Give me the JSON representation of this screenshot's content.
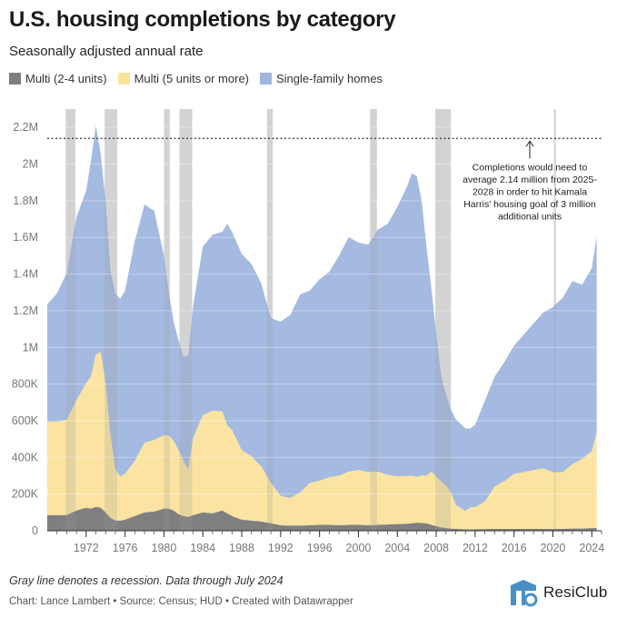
{
  "page": {
    "title": "U.S. housing completions by category",
    "subtitle": "Seasonally adjusted annual rate",
    "note": "Gray line denotes a recession. Data through July 2024",
    "credit": "Chart: Lance Lambert • Source: Census; HUD • Created with Datawrapper",
    "brand": "ResiClub",
    "annotation": "Completions would need to average 2.14 million from 2025-2028 in order to hit Kamala Harris' housing goal of 3 million additional units"
  },
  "colors": {
    "multi_2_4": "#7f7f7f",
    "multi_5_plus": "#fbe39c",
    "single_family": "#a0b6df",
    "recession": "#e3e3e3",
    "brand": "#4a90c8"
  },
  "chart_data": {
    "type": "area",
    "stacked": true,
    "x_unit": "year",
    "xlim": [
      1968,
      2025
    ],
    "ylim": [
      0,
      2300000
    ],
    "yticks": [
      {
        "value": 0,
        "label": "0"
      },
      {
        "value": 200000,
        "label": "200K"
      },
      {
        "value": 400000,
        "label": "400K"
      },
      {
        "value": 600000,
        "label": "600K"
      },
      {
        "value": 800000,
        "label": "800K"
      },
      {
        "value": 1000000,
        "label": "1M"
      },
      {
        "value": 1200000,
        "label": "1.2M"
      },
      {
        "value": 1400000,
        "label": "1.4M"
      },
      {
        "value": 1600000,
        "label": "1.6M"
      },
      {
        "value": 1800000,
        "label": "1.8M"
      },
      {
        "value": 2000000,
        "label": "2M"
      },
      {
        "value": 2200000,
        "label": "2.2M"
      }
    ],
    "xticks": [
      1972,
      1976,
      1980,
      1984,
      1988,
      1992,
      1996,
      2000,
      2004,
      2008,
      2012,
      2016,
      2020,
      2024
    ],
    "reference_line": {
      "value": 2140000
    },
    "recessions": [
      [
        1969.9,
        1970.9
      ],
      [
        1973.9,
        1975.2
      ],
      [
        1980.0,
        1980.6
      ],
      [
        1981.6,
        1982.9
      ],
      [
        1990.6,
        1991.2
      ],
      [
        2001.2,
        2001.9
      ],
      [
        2007.9,
        2009.5
      ],
      [
        2020.1,
        2020.3
      ]
    ],
    "legend": [
      "Multi (2-4 units)",
      "Multi (5 units or more)",
      "Single-family homes"
    ],
    "x": [
      1968.0,
      1969.0,
      1970.0,
      1971.0,
      1972.0,
      1972.5,
      1973.0,
      1973.5,
      1974.0,
      1974.5,
      1975.0,
      1975.5,
      1976.0,
      1977.0,
      1978.0,
      1979.0,
      1980.0,
      1980.5,
      1981.0,
      1981.5,
      1982.0,
      1982.5,
      1983.0,
      1984.0,
      1985.0,
      1986.0,
      1986.5,
      1987.0,
      1988.0,
      1989.0,
      1990.0,
      1991.0,
      1992.0,
      1993.0,
      1994.0,
      1995.0,
      1996.0,
      1997.0,
      1998.0,
      1999.0,
      2000.0,
      2001.0,
      2002.0,
      2003.0,
      2004.0,
      2005.0,
      2005.5,
      2006.0,
      2006.5,
      2007.0,
      2007.5,
      2008.0,
      2008.5,
      2009.0,
      2009.5,
      2010.0,
      2011.0,
      2011.5,
      2012.0,
      2013.0,
      2014.0,
      2015.0,
      2016.0,
      2017.0,
      2018.0,
      2019.0,
      2020.0,
      2021.0,
      2022.0,
      2023.0,
      2024.0,
      2024.5
    ],
    "series": [
      {
        "name": "Multi (2-4 units)",
        "values": [
          85000,
          85000,
          85000,
          110000,
          125000,
          120000,
          130000,
          125000,
          100000,
          70000,
          55000,
          55000,
          60000,
          80000,
          100000,
          105000,
          120000,
          120000,
          110000,
          90000,
          80000,
          75000,
          85000,
          100000,
          95000,
          110000,
          95000,
          80000,
          60000,
          55000,
          50000,
          40000,
          30000,
          28000,
          28000,
          30000,
          32000,
          32000,
          30000,
          32000,
          32000,
          30000,
          32000,
          34000,
          36000,
          38000,
          40000,
          44000,
          42000,
          40000,
          32000,
          25000,
          18000,
          15000,
          12000,
          10000,
          8000,
          7000,
          8000,
          9000,
          10000,
          10000,
          10000,
          10000,
          10000,
          10000,
          10000,
          10000,
          12000,
          12000,
          14000,
          15000
        ]
      },
      {
        "name": "Multi (5 units or more)",
        "values": [
          510000,
          510000,
          520000,
          600000,
          680000,
          720000,
          830000,
          850000,
          700000,
          450000,
          280000,
          240000,
          250000,
          300000,
          380000,
          390000,
          400000,
          400000,
          380000,
          350000,
          300000,
          260000,
          420000,
          530000,
          560000,
          540000,
          480000,
          470000,
          380000,
          350000,
          300000,
          220000,
          160000,
          150000,
          180000,
          230000,
          240000,
          260000,
          270000,
          290000,
          300000,
          290000,
          290000,
          270000,
          260000,
          260000,
          260000,
          250000,
          260000,
          260000,
          290000,
          270000,
          250000,
          230000,
          200000,
          130000,
          100000,
          120000,
          120000,
          150000,
          230000,
          260000,
          300000,
          310000,
          320000,
          330000,
          310000,
          310000,
          350000,
          380000,
          420000,
          520000
        ]
      },
      {
        "name": "Single-family homes",
        "values": [
          640000,
          700000,
          800000,
          1000000,
          1050000,
          1180000,
          1250000,
          1080000,
          1000000,
          900000,
          960000,
          970000,
          1000000,
          1200000,
          1300000,
          1250000,
          980000,
          780000,
          650000,
          600000,
          570000,
          620000,
          720000,
          920000,
          960000,
          980000,
          1100000,
          1080000,
          1070000,
          1050000,
          1000000,
          900000,
          950000,
          1000000,
          1080000,
          1050000,
          1100000,
          1120000,
          1200000,
          1280000,
          1240000,
          1240000,
          1320000,
          1370000,
          1470000,
          1580000,
          1650000,
          1640000,
          1500000,
          1250000,
          1000000,
          780000,
          580000,
          500000,
          450000,
          470000,
          450000,
          430000,
          450000,
          550000,
          600000,
          650000,
          700000,
          750000,
          800000,
          850000,
          900000,
          950000,
          1000000,
          950000,
          1000000,
          1070000
        ]
      }
    ]
  }
}
